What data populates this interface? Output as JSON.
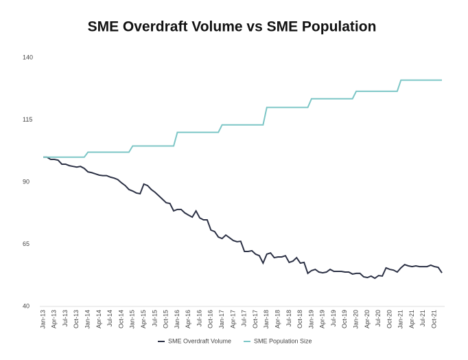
{
  "chart_data": {
    "type": "line",
    "title": "SME Overdraft Volume vs SME Population",
    "categories": [
      "Jan-13",
      null,
      null,
      "Apr-13",
      null,
      null,
      "Jul-13",
      null,
      null,
      "Oct-13",
      null,
      null,
      "Jan-14",
      null,
      null,
      "Apr-14",
      null,
      null,
      "Jul-14",
      null,
      null,
      "Oct-14",
      null,
      null,
      "Jan-15",
      null,
      null,
      "Apr-15",
      null,
      null,
      "Jul-15",
      null,
      null,
      "Oct-15",
      null,
      null,
      "Jan-16",
      null,
      null,
      "Apr-16",
      null,
      null,
      "Jul-16",
      null,
      null,
      "Oct-16",
      null,
      null,
      "Jan-17",
      null,
      null,
      "Apr-17",
      null,
      null,
      "Jul-17",
      null,
      null,
      "Oct-17",
      null,
      null,
      "Jan-18",
      null,
      null,
      "Apr-18",
      null,
      null,
      "Jul-18",
      null,
      null,
      "Oct-18",
      null,
      null,
      "Jan-19",
      null,
      null,
      "Apr-19",
      null,
      null,
      "Jul-19",
      null,
      null,
      "Oct-19",
      null,
      null,
      "Jan-20",
      null,
      null,
      "Apr-20",
      null,
      null,
      "Jul-20",
      null,
      null,
      "Oct-20",
      null,
      null,
      "Jan-21",
      null,
      null,
      "Apr-21",
      null,
      null,
      "Jul-21",
      null,
      null,
      "Oct-21",
      null,
      null
    ],
    "series": [
      {
        "name": "SME Overdraft Volume",
        "color": "#2b3044",
        "values": [
          100,
          100,
          99.1,
          99.1,
          98.8,
          97.2,
          97.2,
          96.6,
          96.3,
          96,
          96.3,
          95.5,
          94.1,
          93.8,
          93.3,
          92.8,
          92.6,
          92.6,
          92,
          91.6,
          91,
          89.7,
          88.6,
          87,
          86.4,
          85.6,
          85.3,
          89.2,
          88.6,
          87,
          85.9,
          84.5,
          83.1,
          81.7,
          81.4,
          78.4,
          79,
          79,
          77.6,
          76.7,
          75.9,
          78.4,
          75.6,
          74.8,
          74.8,
          70.7,
          70.1,
          67.9,
          67.3,
          68.7,
          67.6,
          66.5,
          66,
          66.2,
          62.1,
          62.1,
          62.4,
          61,
          60.4,
          57.4,
          61,
          61.5,
          59.6,
          59.9,
          59.9,
          60.4,
          57.7,
          58.2,
          59.6,
          57.4,
          57.7,
          53.3,
          54.4,
          54.9,
          53.8,
          53.5,
          53.8,
          54.9,
          54.1,
          54.1,
          54.1,
          53.8,
          53.8,
          53,
          53.3,
          53.3,
          51.9,
          51.6,
          52.2,
          51.3,
          52.4,
          52.2,
          55.5,
          54.9,
          54.6,
          53.8,
          55.5,
          56.8,
          56.3,
          56,
          56.3,
          56,
          56,
          56,
          56.6,
          56,
          55.7,
          53.5
        ]
      },
      {
        "name": "SME Population Size",
        "color": "#7cc6c6",
        "values": [
          100,
          100,
          100,
          100,
          100,
          100,
          100,
          100,
          100,
          100,
          100,
          100,
          102,
          102,
          102,
          102,
          102,
          102,
          102,
          102,
          102,
          102,
          102,
          102,
          104.5,
          104.5,
          104.5,
          104.5,
          104.5,
          104.5,
          104.5,
          104.5,
          104.5,
          104.5,
          104.5,
          104.5,
          110,
          110,
          110,
          110,
          110,
          110,
          110,
          110,
          110,
          110,
          110,
          110,
          113,
          113,
          113,
          113,
          113,
          113,
          113,
          113,
          113,
          113,
          113,
          113,
          120,
          120,
          120,
          120,
          120,
          120,
          120,
          120,
          120,
          120,
          120,
          120,
          123.5,
          123.5,
          123.5,
          123.5,
          123.5,
          123.5,
          123.5,
          123.5,
          123.5,
          123.5,
          123.5,
          123.5,
          126.5,
          126.5,
          126.5,
          126.5,
          126.5,
          126.5,
          126.5,
          126.5,
          126.5,
          126.5,
          126.5,
          126.5,
          131,
          131,
          131,
          131,
          131,
          131,
          131,
          131,
          131,
          131,
          131,
          131
        ]
      }
    ],
    "ylim": [
      40,
      140
    ],
    "yticks": [
      40,
      65,
      90,
      115,
      140
    ],
    "grid": false,
    "legend": "bottom"
  }
}
